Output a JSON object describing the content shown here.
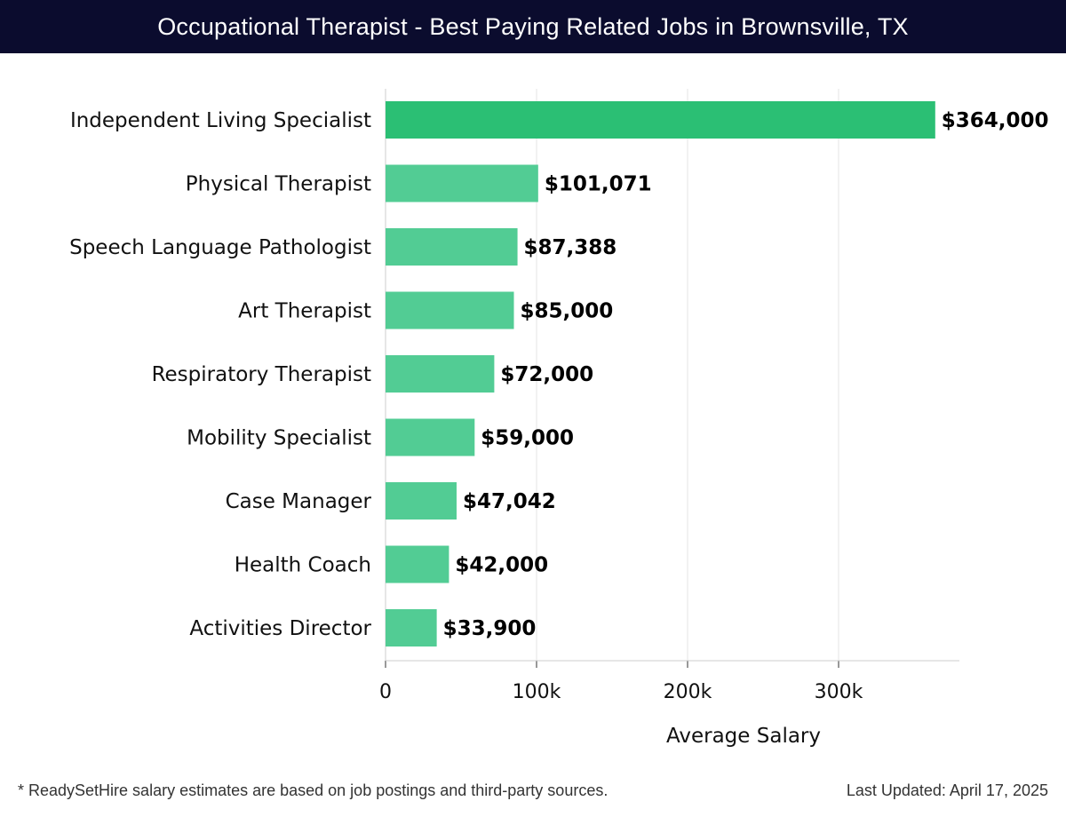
{
  "colors": {
    "header_bg": "#0b0c2e",
    "bar_top": "#2bbf74",
    "bar_default": "#52cc94",
    "grid": "#e6e6e6",
    "axis": "#cccccc"
  },
  "chart_data": {
    "type": "bar",
    "orientation": "horizontal",
    "title": "Occupational Therapist - Best Paying Related Jobs in Brownsville, TX",
    "xlabel": "Average Salary",
    "ylabel": "",
    "xlim": [
      0,
      380000
    ],
    "grid": true,
    "categories": [
      "Independent Living Specialist",
      "Physical Therapist",
      "Speech Language Pathologist",
      "Art Therapist",
      "Respiratory Therapist",
      "Mobility Specialist",
      "Case Manager",
      "Health Coach",
      "Activities Director"
    ],
    "values": [
      364000,
      101071,
      87388,
      85000,
      72000,
      59000,
      47042,
      42000,
      33900
    ],
    "value_labels": [
      "$364,000",
      "$101,071",
      "$87,388",
      "$85,000",
      "$72,000",
      "$59,000",
      "$47,042",
      "$42,000",
      "$33,900"
    ],
    "x_ticks": [
      0,
      100000,
      200000,
      300000
    ],
    "x_tick_labels": [
      "0",
      "100k",
      "200k",
      "300k"
    ]
  },
  "footer": {
    "note": "* ReadySetHire salary estimates are based on job postings and third-party sources.",
    "updated": "Last Updated: April 17, 2025"
  }
}
